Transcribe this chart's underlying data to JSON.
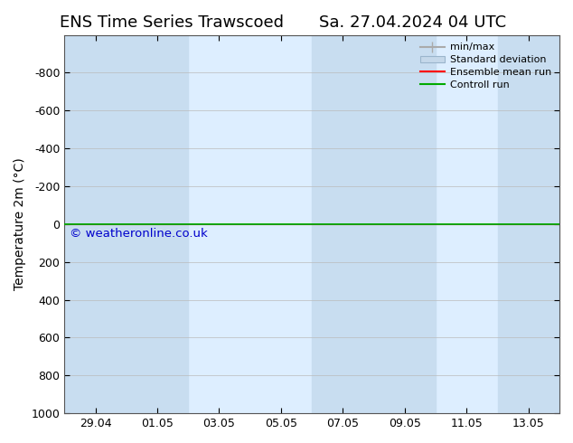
{
  "title_left": "ENS Time Series Trawscoed",
  "title_right": "Sa. 27.04.2024 04 UTC",
  "ylabel": "Temperature 2m (°C)",
  "watermark": "© weatheronline.co.uk",
  "ylim_bottom": 1000,
  "ylim_top": -1000,
  "yticks": [
    -800,
    -600,
    -400,
    -200,
    0,
    200,
    400,
    600,
    800,
    1000
  ],
  "xlim_left": 0,
  "xlim_right": 16,
  "xtick_positions": [
    1,
    3,
    5,
    7,
    9,
    11,
    13,
    15
  ],
  "xtick_labels": [
    "29.04",
    "01.05",
    "03.05",
    "05.05",
    "07.05",
    "09.05",
    "11.05",
    "13.05"
  ],
  "bg_color": "#ffffff",
  "plot_bg_color": "#ddeeff",
  "shaded_bands": [
    [
      0,
      2
    ],
    [
      2,
      4
    ],
    [
      8,
      10
    ],
    [
      10,
      12
    ],
    [
      14,
      16
    ]
  ],
  "shaded_color": "#c8ddf0",
  "green_line_color": "#00aa00",
  "red_line_color": "#ff0000",
  "legend_labels": [
    "min/max",
    "Standard deviation",
    "Ensemble mean run",
    "Controll run"
  ],
  "legend_colors": [
    "#aaaaaa",
    "#c5d8ea",
    "#ff0000",
    "#00aa00"
  ],
  "grid_color": "#bbbbbb",
  "watermark_color": "#0000cc",
  "title_fontsize": 13,
  "axis_fontsize": 10,
  "tick_fontsize": 9,
  "spine_color": "#555555"
}
